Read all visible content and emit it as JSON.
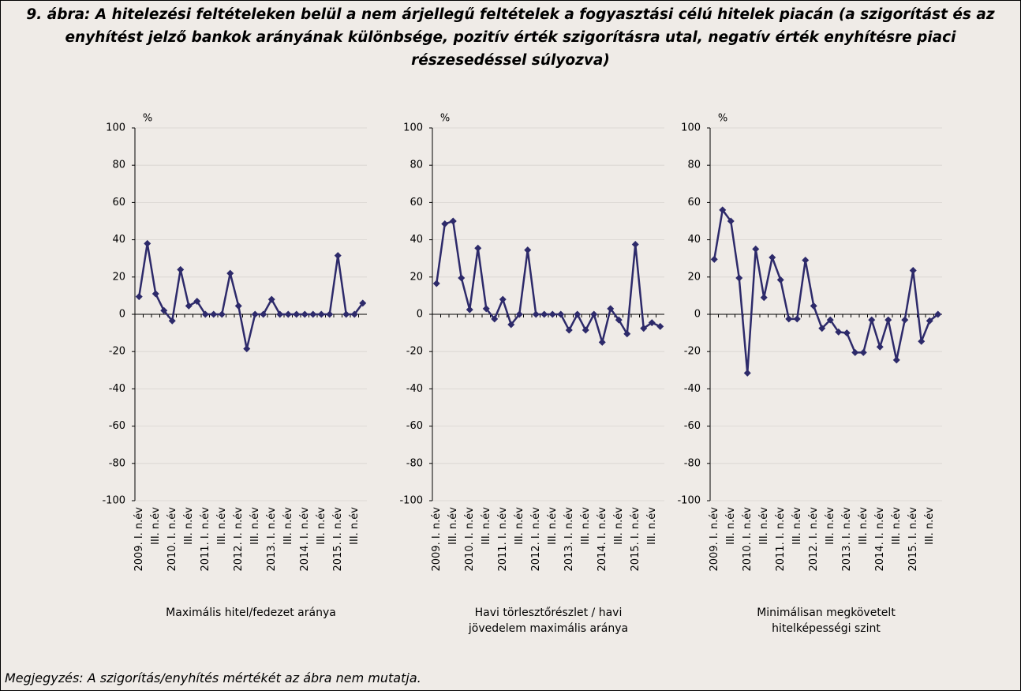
{
  "title": "9. ábra: A hitelezési feltételeken belül a nem árjellegű feltételek a fogyasztási célú hitelek piacán (a szigorítást és az enyhítést jelző bankok arányának különbsége, pozitív érték szigorításra utal, negatív érték enyhítésre piaci részesedéssel súlyozva)",
  "note": "Megjegyzés: A szigorítás/enyhítés mértékét az ábra nem mutatja.",
  "chart_data": [
    {
      "type": "line",
      "ylabel": "%",
      "xlabel": "Maximális hitel/fedezet aránya",
      "color": "#2d2a6a",
      "categories": [
        "2009. I. n.év",
        null,
        "III. n.év",
        null,
        "2010. I. n.év",
        null,
        "III. n.év",
        null,
        "2011. I. n.év",
        null,
        "III. n.év",
        null,
        "2012. I. n.év",
        null,
        "III. n.év",
        null,
        "2013. I. n.év",
        null,
        "III. n.év",
        null,
        "2014. I. n.év",
        null,
        "III. n.év",
        null,
        "2015. I. n.év",
        null,
        "III. n.év",
        null
      ],
      "values": [
        9.5,
        38,
        11,
        2,
        -3.5,
        24,
        4.5,
        7,
        0,
        0,
        0,
        22,
        4.5,
        -18.5,
        0,
        0,
        8,
        0,
        0,
        0,
        0,
        0,
        0,
        0,
        31.5,
        0,
        0,
        6
      ],
      "ylim": [
        -100,
        100
      ],
      "yticks": [
        -100,
        -80,
        -60,
        -40,
        -20,
        0,
        20,
        40,
        60,
        80,
        100
      ],
      "grid": true
    },
    {
      "type": "line",
      "ylabel": "%",
      "xlabel": "Havi törlesztőrészlet / havi jövedelem maximális aránya",
      "color": "#2d2a6a",
      "categories": [
        "2009. I. n.év",
        null,
        "III. n.év",
        null,
        "2010. I. n.év",
        null,
        "III. n.év",
        null,
        "2011. I. n.év",
        null,
        "III. n.év",
        null,
        "2012. I. n.év",
        null,
        "III. n.év",
        null,
        "2013. I. n.év",
        null,
        "III. n.év",
        null,
        "2014. I. n.év",
        null,
        "III. n.év",
        null,
        "2015. I. n.év",
        null,
        "III. n.év",
        null
      ],
      "values": [
        16.5,
        48.5,
        50,
        19.5,
        2.5,
        35.5,
        3,
        -2.5,
        8,
        -5.5,
        0,
        34.5,
        0,
        0,
        0,
        0,
        -8.5,
        0,
        -8.5,
        0,
        -15,
        3,
        -3,
        -10.5,
        37.5,
        -7.5,
        -4.5,
        -6.5
      ],
      "ylim": [
        -100,
        100
      ],
      "yticks": [
        -100,
        -80,
        -60,
        -40,
        -20,
        0,
        20,
        40,
        60,
        80,
        100
      ],
      "grid": true
    },
    {
      "type": "line",
      "ylabel": "%",
      "xlabel": "Minimálisan megkövetelt hitelképességi szint",
      "color": "#2d2a6a",
      "categories": [
        "2009. I. n.év",
        null,
        "III. n.év",
        null,
        "2010. I. n.év",
        null,
        "III. n.év",
        null,
        "2011. I. n.év",
        null,
        "III. n.év",
        null,
        "2012. I. n.év",
        null,
        "III. n.év",
        null,
        "2013. I. n.év",
        null,
        "III. n.év",
        null,
        "2014. I. n.év",
        null,
        "III. n.év",
        null,
        "2015. I. n.év",
        null,
        "III. n.év",
        null
      ],
      "values": [
        29.5,
        56,
        50,
        19.5,
        -31.5,
        35,
        9,
        30.5,
        18.5,
        -2.5,
        -2.5,
        29,
        4.5,
        -7.5,
        -3,
        -9.5,
        -10,
        -20.5,
        -20.5,
        -3,
        -17.5,
        -3,
        -24.5,
        -3,
        23.5,
        -14.5,
        -3.5,
        0
      ],
      "ylim": [
        -100,
        100
      ],
      "yticks": [
        -100,
        -80,
        -60,
        -40,
        -20,
        0,
        20,
        40,
        60,
        80,
        100
      ],
      "grid": true
    }
  ]
}
